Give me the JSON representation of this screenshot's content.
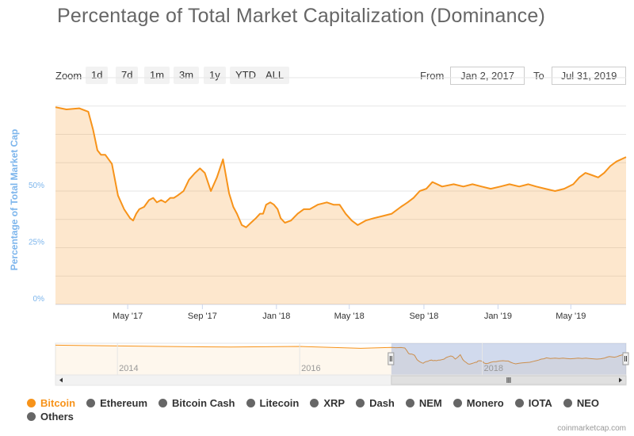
{
  "chart_data": {
    "type": "area",
    "title": "Percentage of Total Market Capitalization (Dominance)",
    "ylabel": "Percentage of Total Market Cap",
    "xlabel": "",
    "ylim": [
      0,
      100
    ],
    "ytick_labels": [
      "0%",
      "25%",
      "50%"
    ],
    "xtick_labels": [
      "May '17",
      "Sep '17",
      "Jan '18",
      "May '18",
      "Sep '18",
      "Jan '19",
      "May '19"
    ],
    "x_range": [
      "2017-01-02",
      "2019-07-31"
    ],
    "grid": true,
    "series": [
      {
        "name": "Bitcoin",
        "color": "#f7931a",
        "x": [
          "2017-01-02",
          "2017-01-20",
          "2017-02-10",
          "2017-02-25",
          "2017-03-05",
          "2017-03-12",
          "2017-03-18",
          "2017-03-25",
          "2017-04-05",
          "2017-04-15",
          "2017-04-25",
          "2017-05-05",
          "2017-05-10",
          "2017-05-15",
          "2017-05-20",
          "2017-05-28",
          "2017-06-05",
          "2017-06-12",
          "2017-06-18",
          "2017-06-25",
          "2017-07-02",
          "2017-07-10",
          "2017-07-16",
          "2017-07-22",
          "2017-08-01",
          "2017-08-10",
          "2017-08-20",
          "2017-08-28",
          "2017-09-05",
          "2017-09-15",
          "2017-09-25",
          "2017-10-05",
          "2017-10-15",
          "2017-10-22",
          "2017-10-28",
          "2017-11-05",
          "2017-11-12",
          "2017-11-20",
          "2017-11-28",
          "2017-12-05",
          "2017-12-10",
          "2017-12-15",
          "2017-12-22",
          "2017-12-28",
          "2018-01-03",
          "2018-01-08",
          "2018-01-15",
          "2018-01-25",
          "2018-02-05",
          "2018-02-15",
          "2018-02-25",
          "2018-03-10",
          "2018-03-25",
          "2018-04-05",
          "2018-04-15",
          "2018-04-25",
          "2018-05-05",
          "2018-05-15",
          "2018-05-28",
          "2018-06-10",
          "2018-06-25",
          "2018-07-10",
          "2018-07-25",
          "2018-08-05",
          "2018-08-15",
          "2018-08-25",
          "2018-09-05",
          "2018-09-15",
          "2018-10-01",
          "2018-10-20",
          "2018-11-05",
          "2018-11-20",
          "2018-12-05",
          "2018-12-20",
          "2019-01-05",
          "2019-01-20",
          "2019-02-05",
          "2019-02-20",
          "2019-03-05",
          "2019-03-20",
          "2019-04-05",
          "2019-04-20",
          "2019-05-05",
          "2019-05-15",
          "2019-05-25",
          "2019-06-05",
          "2019-06-15",
          "2019-06-25",
          "2019-07-05",
          "2019-07-15",
          "2019-07-31"
        ],
        "values": [
          87,
          86,
          86.5,
          85,
          77,
          68,
          66,
          66,
          62,
          48,
          42,
          38,
          37,
          40,
          42,
          43,
          46,
          47,
          45,
          46,
          45,
          47,
          47,
          48,
          50,
          55,
          58,
          60,
          58,
          50,
          56,
          64,
          49,
          43,
          40,
          35,
          34,
          36,
          38,
          40,
          40,
          44,
          45,
          44,
          42,
          38,
          36,
          37,
          40,
          42,
          42,
          44,
          45,
          44,
          44,
          40,
          37,
          35,
          37,
          38,
          39,
          40,
          43,
          45,
          47,
          50,
          51,
          54,
          52,
          53,
          52,
          53,
          52,
          51,
          52,
          53,
          52,
          53,
          52,
          51,
          50,
          51,
          53,
          56,
          58,
          57,
          56,
          58,
          61,
          63,
          65
        ]
      }
    ],
    "navigator": {
      "xtick_labels": [
        "2014",
        "2016",
        "2018"
      ],
      "selection": [
        "2017-01-02",
        "2019-07-31"
      ]
    }
  },
  "zoom": {
    "label": "Zoom",
    "buttons": [
      "1d",
      "7d",
      "1m",
      "3m",
      "1y",
      "YTD",
      "ALL"
    ]
  },
  "range": {
    "from_label": "From",
    "from_value": "Jan 2, 2017",
    "to_label": "To",
    "to_value": "Jul 31, 2019"
  },
  "legend": {
    "items": [
      {
        "label": "Bitcoin",
        "color": "#f7931a",
        "active": true
      },
      {
        "label": "Ethereum",
        "color": "#666666",
        "active": false
      },
      {
        "label": "Bitcoin Cash",
        "color": "#666666",
        "active": false
      },
      {
        "label": "Litecoin",
        "color": "#666666",
        "active": false
      },
      {
        "label": "XRP",
        "color": "#666666",
        "active": false
      },
      {
        "label": "Dash",
        "color": "#666666",
        "active": false
      },
      {
        "label": "NEM",
        "color": "#666666",
        "active": false
      },
      {
        "label": "Monero",
        "color": "#666666",
        "active": false
      },
      {
        "label": "IOTA",
        "color": "#666666",
        "active": false
      },
      {
        "label": "NEO",
        "color": "#666666",
        "active": false
      },
      {
        "label": "Others",
        "color": "#666666",
        "active": false
      }
    ]
  },
  "credits": "coinmarketcap.com"
}
